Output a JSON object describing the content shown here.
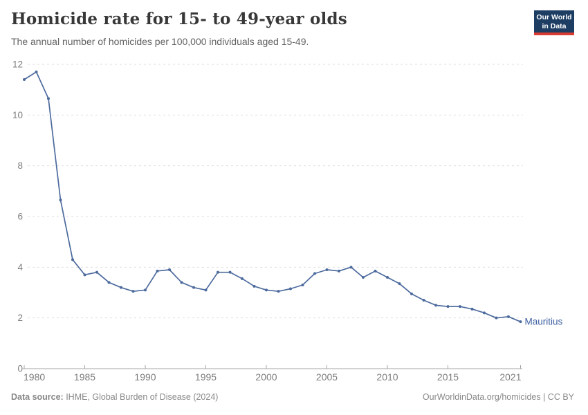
{
  "header": {
    "title": "Homicide rate for 15- to 49-year olds",
    "subtitle": "The annual number of homicides per 100,000 individuals aged 15-49.",
    "logo": {
      "line1": "Our World",
      "line2": "in Data",
      "bg_color": "#1d3d63",
      "accent_color": "#d93b32"
    }
  },
  "chart_data": {
    "type": "line",
    "title": "Homicide rate for 15- to 49-year olds",
    "xlabel": "",
    "ylabel": "",
    "grid": "horizontal-dashed",
    "ylim": [
      0,
      12
    ],
    "xlim": [
      1980,
      2021
    ],
    "yticks": [
      0,
      2,
      4,
      6,
      8,
      10,
      12
    ],
    "xticks": [
      1980,
      1985,
      1990,
      1995,
      2000,
      2005,
      2010,
      2015,
      2021
    ],
    "legend_position": "end-of-line-label",
    "series": [
      {
        "name": "Mauritius",
        "color": "#4c6a9d",
        "x": [
          1980,
          1981,
          1982,
          1983,
          1984,
          1985,
          1986,
          1987,
          1988,
          1989,
          1990,
          1991,
          1992,
          1993,
          1994,
          1995,
          1996,
          1997,
          1998,
          1999,
          2000,
          2001,
          2002,
          2003,
          2004,
          2005,
          2006,
          2007,
          2008,
          2009,
          2010,
          2011,
          2012,
          2013,
          2014,
          2015,
          2016,
          2017,
          2018,
          2019,
          2020,
          2021
        ],
        "values": [
          11.4,
          11.7,
          10.65,
          6.65,
          4.3,
          3.7,
          3.8,
          3.4,
          3.2,
          3.05,
          3.1,
          3.85,
          3.9,
          3.4,
          3.2,
          3.1,
          3.8,
          3.8,
          3.55,
          3.25,
          3.1,
          3.05,
          3.15,
          3.3,
          3.75,
          3.9,
          3.85,
          4.0,
          3.6,
          3.85,
          3.6,
          3.35,
          2.95,
          2.7,
          2.5,
          2.45,
          2.45,
          2.35,
          2.2,
          2.0,
          2.05,
          1.85
        ]
      }
    ],
    "entity_label": "Mauritius",
    "entity_label_color": "#3d5fa0",
    "grid_color": "#dedede",
    "axis_color": "#a6a6a6",
    "tick_label_color": "#7c7c7c"
  },
  "footer": {
    "source_label": "Data source:",
    "source_text": " IHME, Global Burden of Disease (2024)",
    "credit": "OurWorldinData.org/homicides | CC BY"
  }
}
